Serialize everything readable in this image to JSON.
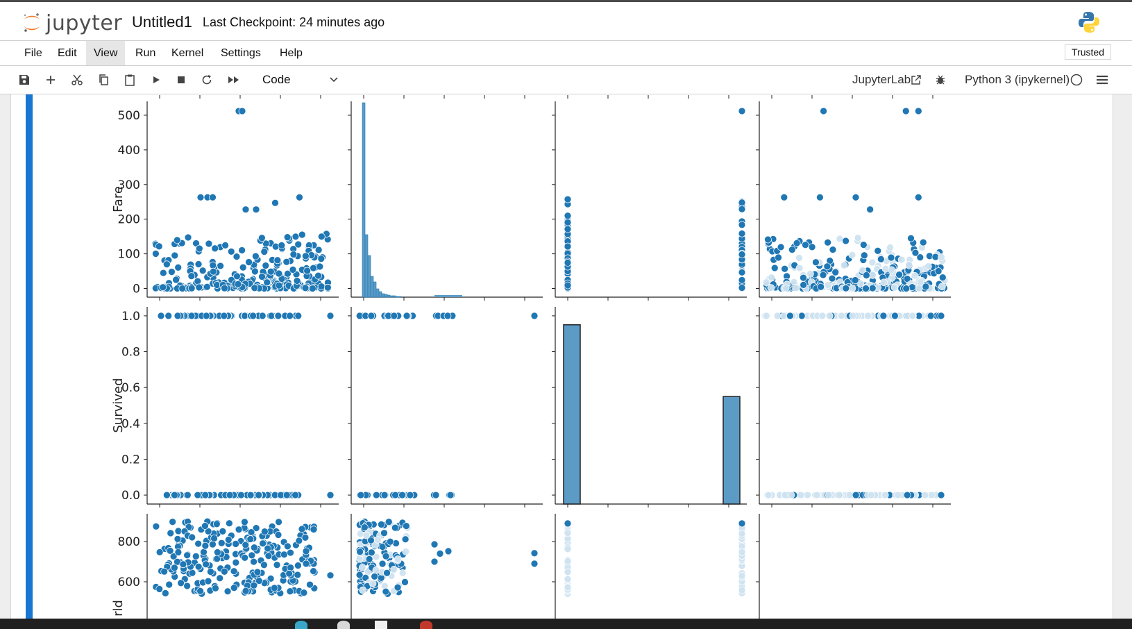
{
  "app": {
    "logo_text": "jupyter",
    "notebook_title": "Untitled1",
    "checkpoint_text": "Last Checkpoint: 24 minutes ago"
  },
  "menu": {
    "items": [
      {
        "label": "File"
      },
      {
        "label": "Edit"
      },
      {
        "label": "View",
        "active": true
      },
      {
        "label": "Run"
      },
      {
        "label": "Kernel"
      },
      {
        "label": "Settings"
      },
      {
        "label": "Help"
      }
    ],
    "trusted_label": "Trusted"
  },
  "toolbar": {
    "icons": [
      "save-icon",
      "add-cell-icon",
      "cut-icon",
      "copy-icon",
      "paste-icon",
      "run-icon",
      "stop-icon",
      "restart-icon",
      "fast-forward-icon"
    ],
    "cell_type": "Code",
    "jupyterlab_label": "JupyterLab",
    "kernel_label": "Python 3 (ipykernel)"
  },
  "colors": {
    "accent": "#1976d2",
    "point": "#1f77b4",
    "bar": "#5b9bc6"
  },
  "chart_data": {
    "type": "scatter",
    "title": "",
    "rows": [
      {
        "ylabel": "Fare",
        "yticks": [
          0,
          100,
          200,
          300,
          400,
          500
        ],
        "ylim": [
          -25,
          540
        ]
      },
      {
        "ylabel": "Survived",
        "yticks": [
          0.0,
          0.2,
          0.4,
          0.6,
          0.8,
          1.0
        ],
        "ylim": [
          -0.05,
          1.05
        ]
      },
      {
        "ylabel": "rld",
        "yticks": [
          600,
          800
        ],
        "ylim": [
          510,
          910
        ]
      }
    ],
    "histogram_survived": {
      "categories": [
        0,
        1
      ],
      "values": [
        1.0,
        0.6
      ]
    },
    "grid": false,
    "legend": "none"
  }
}
